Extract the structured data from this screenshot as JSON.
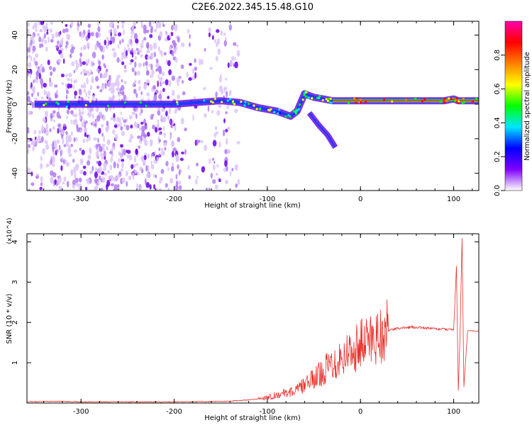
{
  "title": "C2E6.2022.345.15.48.G10",
  "colors": {
    "snr_line": "#e8302c",
    "track": "#1a6bff",
    "scatter": "#8a2be2"
  },
  "chart_data": [
    {
      "type": "heatmap",
      "name": "spectrogram",
      "xlabel": "Height of straight line (km)",
      "ylabel": "Frequency (Hz)",
      "xlim": [
        -358,
        127
      ],
      "ylim": [
        -50,
        48
      ],
      "x_ticks": [
        -300,
        -200,
        -100,
        0,
        100
      ],
      "y_ticks": [
        -40,
        -20,
        0,
        20,
        40
      ],
      "grid": false,
      "colorbar": {
        "label": "Normalized spectral amplitude",
        "range": [
          0.0,
          1.0
        ],
        "ticks": [
          0.0,
          0.2,
          0.4,
          0.6,
          0.8
        ],
        "stops": [
          "#ffffff",
          "#7f00ff",
          "#0000ff",
          "#00e5ff",
          "#00ff00",
          "#ffff00",
          "#ff8000",
          "#ff0000",
          "#ff00aa"
        ]
      },
      "track": [
        {
          "x": -350,
          "f": 0
        },
        {
          "x": -300,
          "f": 0
        },
        {
          "x": -200,
          "f": 0
        },
        {
          "x": -150,
          "f": 2
        },
        {
          "x": -130,
          "f": 1
        },
        {
          "x": -110,
          "f": -2
        },
        {
          "x": -90,
          "f": -4
        },
        {
          "x": -75,
          "f": -7
        },
        {
          "x": -68,
          "f": -4
        },
        {
          "x": -60,
          "f": 6
        },
        {
          "x": -50,
          "f": 4
        },
        {
          "x": -40,
          "f": 3
        },
        {
          "x": -30,
          "f": 2
        },
        {
          "x": 0,
          "f": 2
        },
        {
          "x": 50,
          "f": 2
        },
        {
          "x": 90,
          "f": 2
        },
        {
          "x": 100,
          "f": 3
        },
        {
          "x": 105,
          "f": 2
        },
        {
          "x": 127,
          "f": 2
        }
      ],
      "branch": [
        {
          "x": -55,
          "f": -5
        },
        {
          "x": -45,
          "f": -12
        },
        {
          "x": -35,
          "f": -18
        },
        {
          "x": -27,
          "f": -25
        }
      ]
    },
    {
      "type": "line",
      "name": "snr",
      "xlabel": "Height of straight line (km)",
      "ylabel": "SNR (10 * v/v)",
      "y_multiplier": "(x10^4)",
      "xlim": [
        -358,
        127
      ],
      "ylim": [
        0,
        4.2
      ],
      "x_ticks": [
        -300,
        -200,
        -100,
        0,
        100
      ],
      "y_ticks": [
        1,
        2,
        3,
        4
      ],
      "grid": false,
      "series": [
        {
          "x": [
            -358,
            -340,
            -320,
            -300,
            -250,
            -200,
            -150,
            -130,
            -110,
            -100,
            -90,
            -80,
            -70,
            -60,
            -50,
            -40,
            -30,
            -20,
            -10,
            0,
            10,
            20,
            30,
            40,
            50,
            60,
            70,
            80,
            90,
            100,
            103,
            105,
            107,
            109,
            111,
            115,
            127
          ],
          "y": [
            0.03,
            0.04,
            0.04,
            0.03,
            0.03,
            0.03,
            0.04,
            0.06,
            0.1,
            0.15,
            0.2,
            0.25,
            0.3,
            0.45,
            0.6,
            0.8,
            1.0,
            1.15,
            1.3,
            1.45,
            1.6,
            1.7,
            1.8,
            1.85,
            1.88,
            1.88,
            1.86,
            1.84,
            1.83,
            1.82,
            3.4,
            0.3,
            1.8,
            4.1,
            0.4,
            1.8,
            1.78
          ]
        }
      ]
    }
  ]
}
